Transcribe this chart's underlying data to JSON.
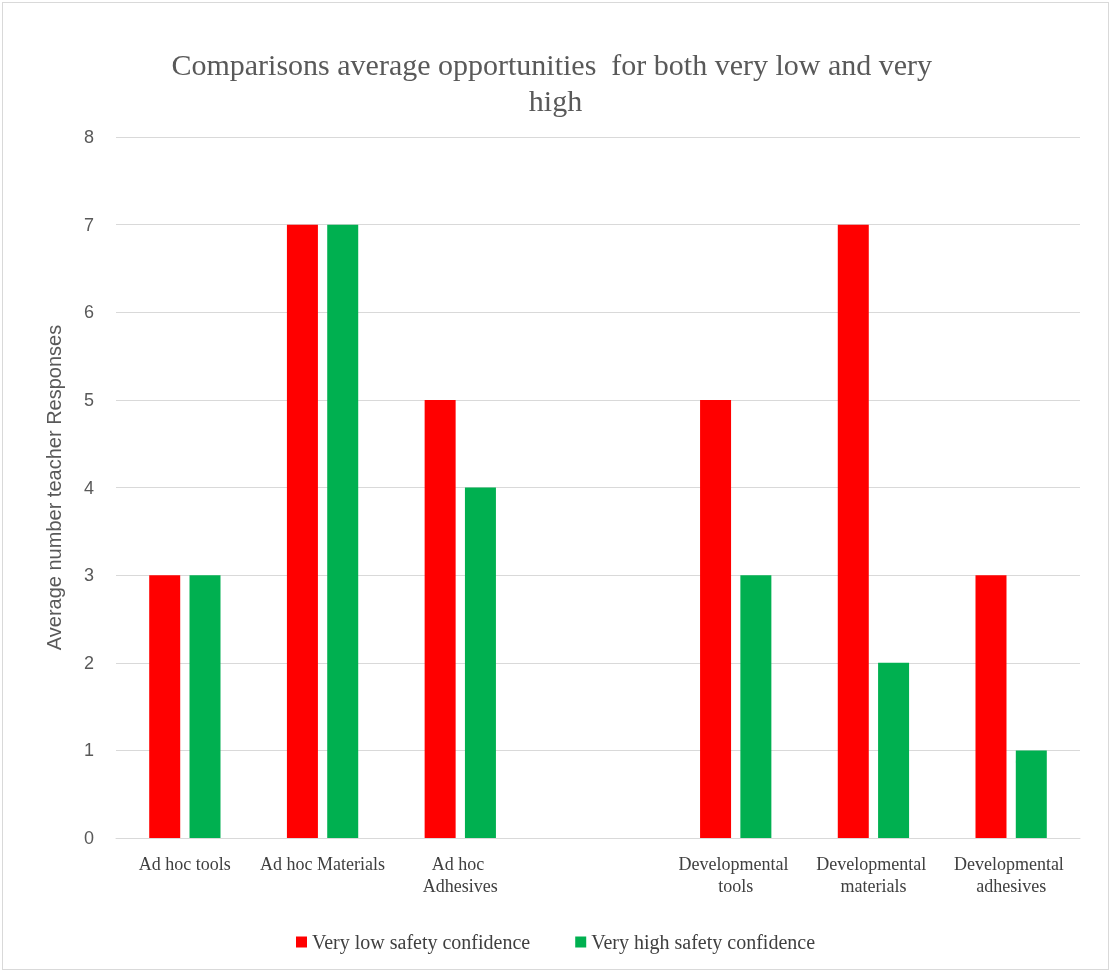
{
  "chart_data": {
    "type": "bar",
    "title": "Comparisons average opportunities  for both very low and very high",
    "ylabel": "Average number teacher Responses",
    "categories": [
      "Ad hoc tools",
      "Ad hoc Materials",
      "Ad hoc Adhesives",
      null,
      "Developmental tools",
      "Developmental materials",
      "Developmental adhesives"
    ],
    "series": [
      {
        "name": "Very low safety confidence",
        "color": "#ff0000",
        "values": [
          3,
          7,
          5,
          null,
          5,
          7,
          3
        ]
      },
      {
        "name": "Very high safety confidence",
        "color": "#00b050",
        "values": [
          3,
          7,
          4,
          null,
          3,
          2,
          1
        ]
      }
    ],
    "ylim": [
      0,
      8
    ],
    "yticks": [
      0,
      1,
      2,
      3,
      4,
      5,
      6,
      7,
      8
    ],
    "grid": "y",
    "legend": "bottom"
  }
}
